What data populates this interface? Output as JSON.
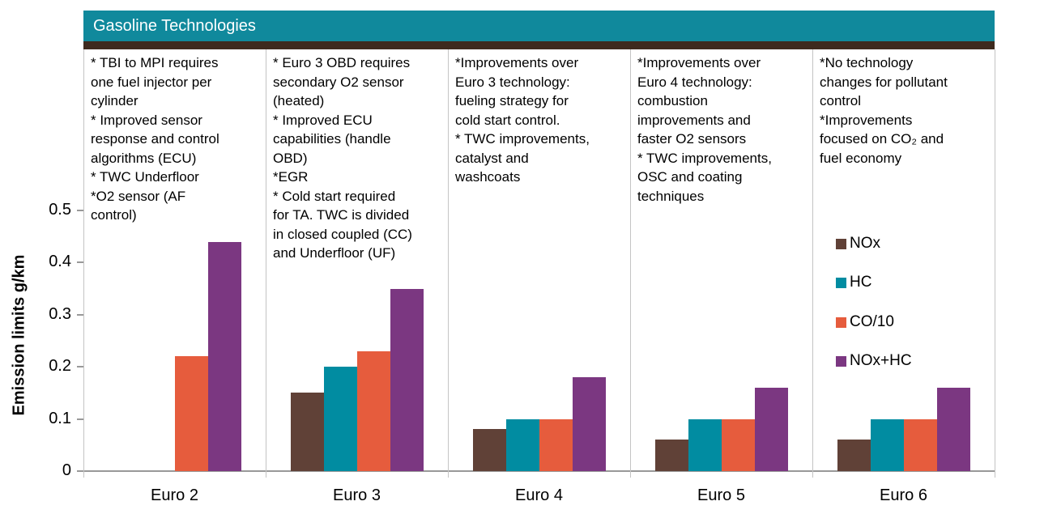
{
  "header": {
    "title": "Gasoline Technologies"
  },
  "colors": {
    "header_bg": "#10899C",
    "header_underline": "#3E2A1E",
    "axis": "#999999",
    "divider": "#C4C4C4"
  },
  "chart_data": {
    "type": "bar",
    "title": "Gasoline Technologies",
    "ylabel": "Emission limits g/km",
    "ylim": [
      0,
      0.5
    ],
    "yticks": [
      "0",
      "0.1",
      "0.2",
      "0.3",
      "0.4",
      "0.5"
    ],
    "grid": false,
    "legend_position": "inside-right",
    "categories": [
      "Euro 2",
      "Euro 3",
      "Euro 4",
      "Euro 5",
      "Euro 6"
    ],
    "series": [
      {
        "name": "NOx",
        "color": "#604137",
        "values": [
          0,
          0.15,
          0.08,
          0.06,
          0.06
        ]
      },
      {
        "name": "HC",
        "color": "#018CA1",
        "values": [
          0,
          0.2,
          0.1,
          0.1,
          0.1
        ]
      },
      {
        "name": "CO/10",
        "color": "#E65C3D",
        "values": [
          0.22,
          0.23,
          0.1,
          0.1,
          0.1
        ]
      },
      {
        "name": "NOx+HC",
        "color": "#7B3781",
        "values": [
          0.44,
          0.35,
          0.18,
          0.16,
          0.16
        ]
      }
    ],
    "annotations": [
      "* TBI to MPI requires\none fuel injector per\ncylinder\n* Improved sensor\nresponse and control\nalgorithms (ECU)\n* TWC Underfloor\n*O2 sensor  (AF\ncontrol)",
      "* Euro 3 OBD requires\nsecondary O2 sensor\n(heated)\n* Improved ECU\ncapabilities (handle\nOBD)\n*EGR\n* Cold start required\nfor TA. TWC is divided\nin closed coupled (CC)\nand Underfloor (UF)",
      "*Improvements over\nEuro 3 technology:\nfueling strategy for\ncold start control.\n* TWC improvements,\ncatalyst and\nwashcoats",
      "*Improvements over\nEuro 4 technology:\ncombustion\nimprovements and\nfaster O2 sensors\n* TWC improvements,\nOSC and coating\ntechniques",
      "*No technology\nchanges for pollutant\ncontrol\n*Improvements\nfocused on CO₂  and\nfuel economy"
    ]
  }
}
